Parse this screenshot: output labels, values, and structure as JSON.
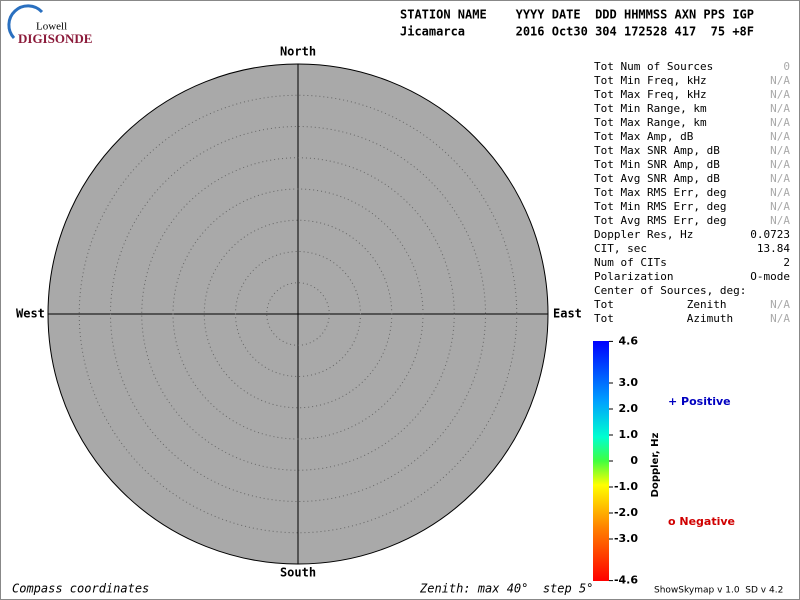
{
  "logo": {
    "top": "Lowell",
    "bottom": "DIGISONDE"
  },
  "header": {
    "line1": "STATION NAME    YYYY DATE  DDD HHMMSS AXN PPS IGP",
    "line2": "Jicamarca       2016 Oct30 304 172528 417  75 +8F"
  },
  "compass": {
    "north": "North",
    "south": "South",
    "east": "East",
    "west": "West"
  },
  "stats": [
    {
      "label": "Tot Num of Sources",
      "value": 0
    },
    {
      "label": "Tot Min Freq, kHz",
      "value": "N/A"
    },
    {
      "label": "Tot Max Freq, kHz",
      "value": "N/A"
    },
    {
      "label": "Tot Min Range, km",
      "value": "N/A"
    },
    {
      "label": "Tot Max Range, km",
      "value": "N/A"
    },
    {
      "label": "Tot Max Amp, dB",
      "value": "N/A"
    },
    {
      "label": "Tot Max SNR Amp, dB",
      "value": "N/A"
    },
    {
      "label": "Tot Min SNR Amp, dB",
      "value": "N/A"
    },
    {
      "label": "Tot Avg SNR Amp, dB",
      "value": "N/A"
    },
    {
      "label": "Tot Max RMS Err, deg",
      "value": "N/A"
    },
    {
      "label": "Tot Min RMS Err, deg",
      "value": "N/A"
    },
    {
      "label": "Tot Avg RMS Err, deg",
      "value": "N/A"
    },
    {
      "label": "Doppler Res, Hz",
      "value": 0.0723
    },
    {
      "label": "CIT, sec",
      "value": 13.84
    },
    {
      "label": "Num of CITs",
      "value": 2
    },
    {
      "label": "Polarization",
      "value": "O-mode"
    },
    {
      "label": "Center of Sources, deg:"
    },
    {
      "label": "Tot           Zenith",
      "value": "N/A"
    },
    {
      "label": "Tot           Azimuth",
      "value": "N/A"
    }
  ],
  "colorbar": {
    "label": "Doppler, Hz",
    "ticks": [
      {
        "value": 4.6,
        "label": "4.6"
      },
      {
        "value": 3,
        "label": "3.0"
      },
      {
        "value": 2,
        "label": "2.0"
      },
      {
        "value": 1,
        "label": "1.0"
      },
      0,
      {
        "value": -1,
        "label": "-1.0"
      },
      {
        "value": -2,
        "label": "-2.0"
      },
      {
        "value": -3,
        "label": "-3.0"
      },
      {
        "value": -4.6,
        "label": "-4.6"
      }
    ]
  },
  "legend": {
    "positive": "+ Positive",
    "negative": "o Negative"
  },
  "footer": {
    "left": "Compass coordinates",
    "middle": "Zenith: max 40°  step 5°",
    "right": "ShowSkymap v 1.0  SD v 4.2"
  }
}
